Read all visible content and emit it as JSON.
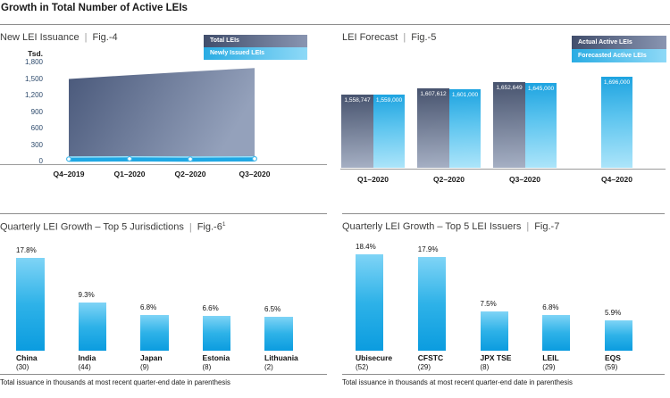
{
  "page": {
    "title": "Growth in Total Number of Active LEIs"
  },
  "colors": {
    "dark_navy": "#47536e",
    "steel_blue": "#a6b0c4",
    "bright_blue": "#29abe2",
    "light_blue": "#8ed9f7",
    "text": "#1a1a1a"
  },
  "chart_data": [
    {
      "id": "fig4",
      "type": "area",
      "title": "New LEI Issuance",
      "fig": "Fig.-4",
      "unit": "Tsd.",
      "ylim": [
        0,
        1800
      ],
      "y_ticks": [
        "1,800",
        "1,500",
        "1,200",
        "900",
        "600",
        "300",
        "0"
      ],
      "categories": [
        "Q4–2019",
        "Q1–2020",
        "Q2–2020",
        "Q3–2020"
      ],
      "series": [
        {
          "name": "Total LEIs",
          "values": [
            1500,
            1570,
            1635,
            1700
          ]
        },
        {
          "name": "Newly Issued LEIs",
          "values": [
            45,
            50,
            45,
            50
          ]
        }
      ],
      "legend_position": "top-right"
    },
    {
      "id": "fig5",
      "type": "bar",
      "title": "LEI Forecast",
      "fig": "Fig.-5",
      "categories": [
        "Q1–2020",
        "Q2–2020",
        "Q3–2020",
        "Q4–2020"
      ],
      "series": [
        {
          "name": "Actual Active LEIs",
          "values": [
            1558747,
            1607612,
            1652649,
            null
          ],
          "labels": [
            "1,558,747",
            "1,607,612",
            "1,652,649",
            null
          ]
        },
        {
          "name": "Forecasted Active LEIs",
          "values": [
            1559000,
            1601000,
            1645000,
            1696000
          ],
          "labels": [
            "1,559,000",
            "1,601,000",
            "1,645,000",
            "1,696,000"
          ]
        }
      ],
      "legend_position": "top-right"
    },
    {
      "id": "fig6",
      "type": "bar",
      "title": "Quarterly LEI Growth – Top 5 Jurisdictions",
      "fig": "Fig.-6",
      "fig_sup": "1",
      "categories": [
        "China",
        "India",
        "Japan",
        "Estonia",
        "Lithuania"
      ],
      "sublabels": [
        "(30)",
        "(44)",
        "(9)",
        "(8)",
        "(2)"
      ],
      "values": [
        17.8,
        9.3,
        6.8,
        6.6,
        6.5
      ],
      "value_labels": [
        "17.8%",
        "9.3%",
        "6.8%",
        "6.6%",
        "6.5%"
      ],
      "ylim": [
        0,
        19.5
      ],
      "footnote": "Total issuance in thousands at most recent quarter-end date in parenthesis"
    },
    {
      "id": "fig7",
      "type": "bar",
      "title": "Quarterly LEI Growth – Top 5 LEI Issuers",
      "fig": "Fig.-7",
      "categories": [
        "Ubisecure",
        "CFSTC",
        "JPX TSE",
        "LEIL",
        "EQS"
      ],
      "sublabels": [
        "(52)",
        "(29)",
        "(8)",
        "(29)",
        "(59)"
      ],
      "values": [
        18.4,
        17.9,
        7.5,
        6.8,
        5.9
      ],
      "value_labels": [
        "18.4%",
        "17.9%",
        "7.5%",
        "6.8%",
        "5.9%"
      ],
      "ylim": [
        0,
        19.5
      ],
      "footnote": "Total issuance in thousands at most recent quarter-end date in parenthesis"
    }
  ]
}
